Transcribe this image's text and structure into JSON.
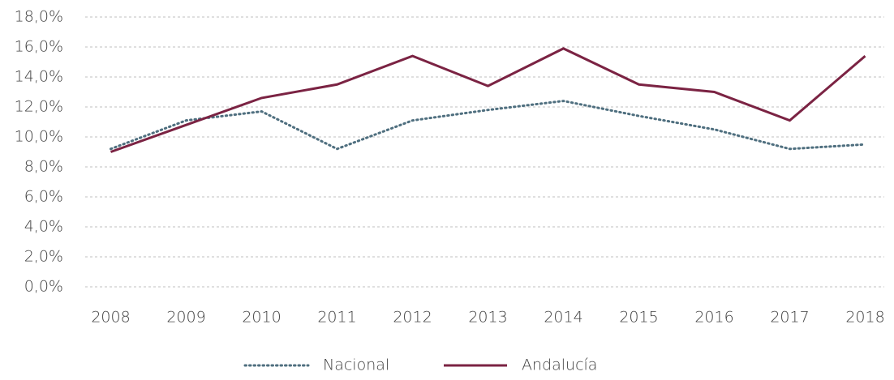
{
  "chart_data": {
    "type": "line",
    "categories": [
      "2008",
      "2009",
      "2010",
      "2011",
      "2012",
      "2013",
      "2014",
      "2015",
      "2016",
      "2017",
      "2018"
    ],
    "series": [
      {
        "name": "Nacional",
        "color": "#4f6f7f",
        "style": "dotted",
        "values": [
          9.2,
          11.1,
          11.7,
          9.2,
          11.1,
          11.8,
          12.4,
          11.4,
          10.5,
          9.2,
          9.5
        ]
      },
      {
        "name": "Andalucía",
        "color": "#7b2343",
        "style": "solid",
        "values": [
          9.0,
          10.8,
          12.6,
          13.5,
          15.4,
          13.4,
          15.9,
          13.5,
          13.0,
          11.1,
          15.4
        ]
      }
    ],
    "ylim": [
      0,
      18
    ],
    "yticks": [
      {
        "value": 0,
        "label": "0,0%"
      },
      {
        "value": 2,
        "label": "2,0%"
      },
      {
        "value": 4,
        "label": "4,0%"
      },
      {
        "value": 6,
        "label": "6,0%"
      },
      {
        "value": 8,
        "label": "8,0%"
      },
      {
        "value": 10,
        "label": "10,0%"
      },
      {
        "value": 12,
        "label": "12,0%"
      },
      {
        "value": 14,
        "label": "14,0%"
      },
      {
        "value": 16,
        "label": "16,0%"
      },
      {
        "value": 18,
        "label": "18,0%"
      }
    ],
    "grid": true,
    "legend": "bottom"
  }
}
